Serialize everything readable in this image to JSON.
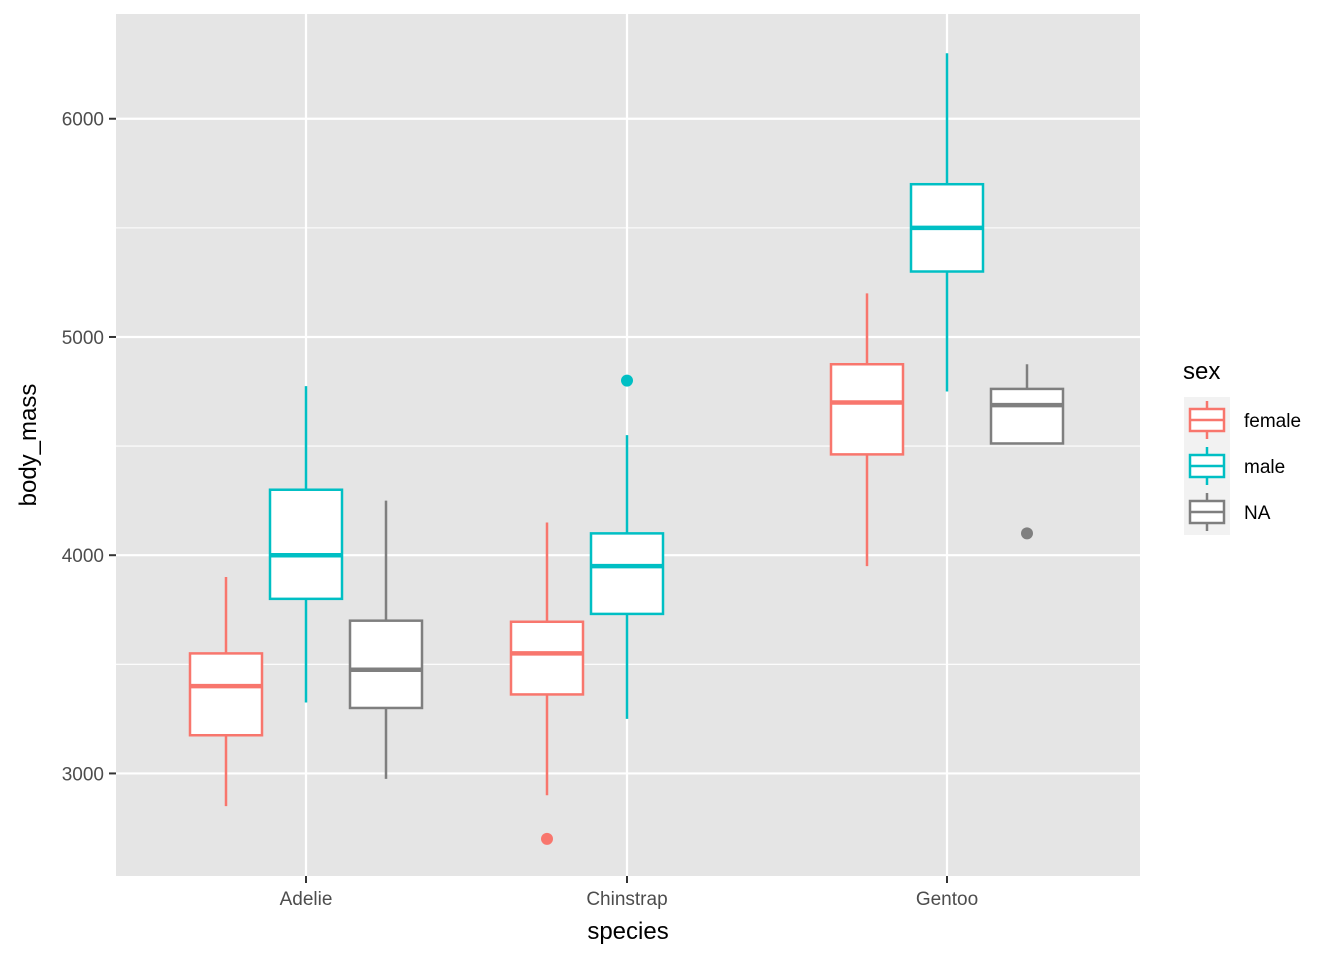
{
  "chart_data": {
    "type": "boxplot",
    "xlabel": "species",
    "ylabel": "body_mass",
    "categories": [
      "Adelie",
      "Chinstrap",
      "Gentoo"
    ],
    "ylim": [
      2530,
      6480
    ],
    "y_ticks": [
      3000,
      4000,
      5000,
      6000
    ],
    "y_tick_labels": [
      "3000",
      "4000",
      "5000",
      "6000"
    ],
    "grid": true,
    "panel_background": "#e5e5e5",
    "legend": {
      "title": "sex",
      "position": "right"
    },
    "series": [
      {
        "name": "female",
        "color": "#f8766d",
        "boxes": [
          {
            "category": "Adelie",
            "whisker_low": 2850,
            "q1": 3175,
            "median": 3400,
            "q3": 3550,
            "whisker_high": 3900,
            "outliers": []
          },
          {
            "category": "Chinstrap",
            "whisker_low": 2900,
            "q1": 3362,
            "median": 3550,
            "q3": 3695,
            "whisker_high": 4150,
            "outliers": [
              2700
            ]
          },
          {
            "category": "Gentoo",
            "whisker_low": 3950,
            "q1": 4462,
            "median": 4700,
            "q3": 4875,
            "whisker_high": 5200,
            "outliers": []
          }
        ]
      },
      {
        "name": "male",
        "color": "#00bfc4",
        "boxes": [
          {
            "category": "Adelie",
            "whisker_low": 3325,
            "q1": 3800,
            "median": 4000,
            "q3": 4300,
            "whisker_high": 4775,
            "outliers": []
          },
          {
            "category": "Chinstrap",
            "whisker_low": 3250,
            "q1": 3731,
            "median": 3950,
            "q3": 4100,
            "whisker_high": 4550,
            "outliers": [
              4800
            ]
          },
          {
            "category": "Gentoo",
            "whisker_low": 4750,
            "q1": 5300,
            "median": 5500,
            "q3": 5700,
            "whisker_high": 6300,
            "outliers": []
          }
        ]
      },
      {
        "name": "NA",
        "color": "#7f7f7f",
        "boxes": [
          {
            "category": "Adelie",
            "whisker_low": 2975,
            "q1": 3300,
            "median": 3475,
            "q3": 3700,
            "whisker_high": 4250,
            "outliers": []
          },
          {
            "category": "Gentoo",
            "whisker_low": 4512,
            "q1": 4512,
            "median": 4688,
            "q3": 4762,
            "whisker_high": 4875,
            "outliers": [
              4100
            ]
          }
        ]
      }
    ]
  }
}
